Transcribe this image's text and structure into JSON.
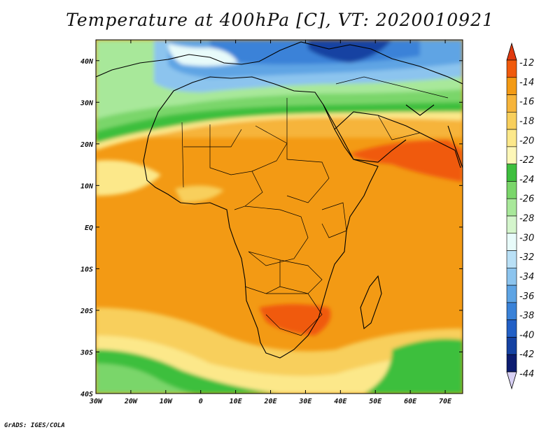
{
  "title": "Temperature at 400hPa [C], VT: 2020010921",
  "credit": "GrADS: IGES/COLA",
  "map": {
    "projection": "lat-lon",
    "lon_range": [
      -30,
      75
    ],
    "lat_range": [
      -40,
      45
    ]
  },
  "axes": {
    "x_ticks": [
      {
        "value": -30,
        "label": "30W"
      },
      {
        "value": -20,
        "label": "20W"
      },
      {
        "value": -10,
        "label": "10W"
      },
      {
        "value": 0,
        "label": "0"
      },
      {
        "value": 10,
        "label": "10E"
      },
      {
        "value": 20,
        "label": "20E"
      },
      {
        "value": 30,
        "label": "30E"
      },
      {
        "value": 40,
        "label": "40E"
      },
      {
        "value": 50,
        "label": "50E"
      },
      {
        "value": 60,
        "label": "60E"
      },
      {
        "value": 70,
        "label": "70E"
      }
    ],
    "y_ticks": [
      {
        "value": 40,
        "label": "40N"
      },
      {
        "value": 30,
        "label": "30N"
      },
      {
        "value": 20,
        "label": "20N"
      },
      {
        "value": 10,
        "label": "10N"
      },
      {
        "value": 0,
        "label": "EQ"
      },
      {
        "value": -10,
        "label": "10S"
      },
      {
        "value": -20,
        "label": "20S"
      },
      {
        "value": -30,
        "label": "30S"
      },
      {
        "value": -40,
        "label": "40S"
      }
    ]
  },
  "colorbar": {
    "levels": [
      {
        "label": "-12"
      },
      {
        "label": "-14"
      },
      {
        "label": "-16"
      },
      {
        "label": "-18"
      },
      {
        "label": "-20"
      },
      {
        "label": "-22"
      },
      {
        "label": "-24"
      },
      {
        "label": "-26"
      },
      {
        "label": "-28"
      },
      {
        "label": "-30"
      },
      {
        "label": "-32"
      },
      {
        "label": "-34"
      },
      {
        "label": "-36"
      },
      {
        "label": "-38"
      },
      {
        "label": "-40"
      },
      {
        "label": "-42"
      },
      {
        "label": "-44"
      }
    ],
    "colors": [
      "#e03a10",
      "#f05a0c",
      "#f39a14",
      "#f6b43a",
      "#f8cf5c",
      "#fce88a",
      "#fdf7b8",
      "#3ebf3e",
      "#7ad66a",
      "#a8e89a",
      "#d4f5cc",
      "#e8fbfa",
      "#b9e0f6",
      "#8cc4ee",
      "#5ea4e4",
      "#3a82d8",
      "#2260c6",
      "#1542a2",
      "#0c1c70",
      "#d8d0f4"
    ]
  }
}
